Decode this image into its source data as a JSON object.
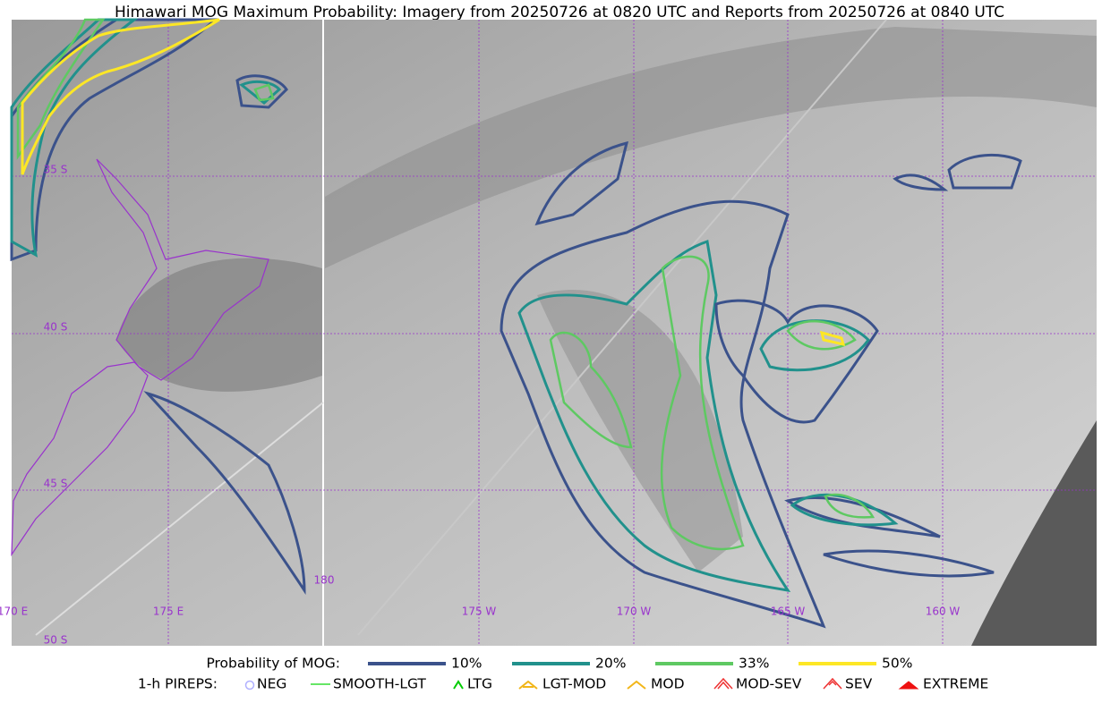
{
  "title": "Himawari MOG Maximum Probability: Imagery from 20250726 at 0820 UTC and Reports from 20250726 at 0840 UTC",
  "grid_labels": [
    "35 S",
    "40 S",
    "45 S",
    "50 S",
    "170 E",
    "175 E",
    "180",
    "175 W",
    "170 W",
    "165 W",
    "160 W"
  ],
  "legend": {
    "probability": {
      "label": "Probability of MOG:",
      "items": [
        {
          "label": "10%",
          "color": "#3b528b"
        },
        {
          "label": "20%",
          "color": "#21918c"
        },
        {
          "label": "33%",
          "color": "#5ec962"
        },
        {
          "label": "50%",
          "color": "#fde725"
        }
      ]
    },
    "pireps": {
      "label": "1-h PIREPS:",
      "items": [
        {
          "label": "NEG",
          "color": "#b0b0ff"
        },
        {
          "label": "SMOOTH-LGT",
          "color": "#33dd33"
        },
        {
          "label": "LTG",
          "color": "#00cc00"
        },
        {
          "label": "LGT-MOD",
          "color": "#f2b619"
        },
        {
          "label": "MOD",
          "color": "#f2b619"
        },
        {
          "label": "MOD-SEV",
          "color": "#ee3333"
        },
        {
          "label": "SEV",
          "color": "#ee3333"
        },
        {
          "label": "EXTREME",
          "color": "#ee1111"
        }
      ]
    }
  }
}
